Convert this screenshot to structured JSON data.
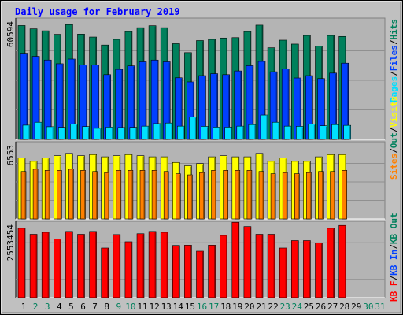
{
  "title": "Daily usage for February 2019",
  "colors": {
    "background": "#c0c0c0",
    "panel": "#b4b4b4",
    "hits": "#00805c",
    "files": "#0040ff",
    "pages": "#00e0ff",
    "visits": "#ff8000",
    "sites": "#ffff00",
    "kbytes": "#ff0000",
    "title_color": "#0000ff",
    "weekend_day": "#00805c",
    "weekday": "#000000"
  },
  "chart_data": [
    {
      "type": "bar",
      "panel": "hits-files-pages",
      "y_tick_label": "60594",
      "legend": [
        {
          "text": "Pages",
          "color": "#00e0ff"
        },
        {
          "text": "Files",
          "color": "#0040ff"
        },
        {
          "text": "Hits",
          "color": "#00805c"
        }
      ],
      "categories": [
        "1",
        "2",
        "3",
        "4",
        "5",
        "6",
        "7",
        "8",
        "9",
        "10",
        "11",
        "12",
        "13",
        "14",
        "15",
        "16",
        "17",
        "18",
        "19",
        "20",
        "21",
        "22",
        "23",
        "24",
        "25",
        "26",
        "27",
        "28",
        "29",
        "30",
        "31"
      ],
      "series": [
        {
          "name": "Hits",
          "values": [
            58400,
            56700,
            55700,
            53900,
            58900,
            54000,
            52500,
            48400,
            51300,
            55300,
            57300,
            58300,
            57300,
            49100,
            44500,
            50700,
            51300,
            52000,
            52200,
            55300,
            58600,
            47000,
            50900,
            48900,
            53300,
            47800,
            53300,
            52800,
            null,
            null,
            null
          ]
        },
        {
          "name": "Files",
          "values": [
            44200,
            42600,
            40700,
            38800,
            41200,
            38100,
            38100,
            33200,
            35900,
            37700,
            39800,
            40700,
            39800,
            31600,
            29500,
            32700,
            33700,
            33200,
            35100,
            37800,
            40000,
            34700,
            36200,
            31500,
            32700,
            31200,
            34000,
            39100,
            null,
            null,
            null
          ]
        },
        {
          "name": "Pages",
          "values": [
            7300,
            8800,
            6500,
            6200,
            7800,
            6600,
            5700,
            6300,
            6100,
            6200,
            6800,
            8100,
            8400,
            6800,
            11500,
            6700,
            6300,
            6300,
            6800,
            7600,
            12500,
            8800,
            6800,
            6700,
            7800,
            7000,
            7600,
            7200,
            null,
            null,
            null
          ]
        }
      ]
    },
    {
      "type": "bar",
      "panel": "visits-sites",
      "y_tick_label": "6553",
      "legend": [
        {
          "text": "Sites",
          "color": "#ff8000"
        },
        {
          "text": "Out",
          "color": "#00805c"
        },
        {
          "text": "Visits",
          "color": "#ffff00"
        }
      ],
      "categories": [
        "1",
        "2",
        "3",
        "4",
        "5",
        "6",
        "7",
        "8",
        "9",
        "10",
        "11",
        "12",
        "13",
        "14",
        "15",
        "16",
        "17",
        "18",
        "19",
        "20",
        "21",
        "22",
        "23",
        "24",
        "25",
        "26",
        "27",
        "28",
        "29",
        "30",
        "31"
      ],
      "series": [
        {
          "name": "Visits",
          "values": [
            5400,
            5100,
            5400,
            5600,
            5800,
            5600,
            5700,
            5500,
            5600,
            5700,
            5600,
            5500,
            5500,
            5000,
            4700,
            4900,
            5500,
            5600,
            5500,
            5500,
            5800,
            5100,
            5400,
            5100,
            5100,
            5500,
            5700,
            5700,
            null,
            null,
            null
          ]
        },
        {
          "name": "Sites",
          "values": [
            4200,
            4400,
            4300,
            4300,
            4400,
            4300,
            4200,
            4100,
            4300,
            4300,
            4300,
            4300,
            4200,
            4000,
            3900,
            4100,
            4300,
            4300,
            4300,
            4300,
            4200,
            4000,
            4100,
            4000,
            4100,
            4200,
            4200,
            4300,
            null,
            null,
            null
          ]
        }
      ]
    },
    {
      "type": "bar",
      "panel": "kbytes",
      "y_tick_label": "2553454",
      "legend": [
        {
          "text": "KB F",
          "color": "#ff0000"
        },
        {
          "text": "KB In",
          "color": "#0040ff"
        },
        {
          "text": "KB Out",
          "color": "#00805c"
        }
      ],
      "categories": [
        "1",
        "2",
        "3",
        "4",
        "5",
        "6",
        "7",
        "8",
        "9",
        "10",
        "11",
        "12",
        "13",
        "14",
        "15",
        "16",
        "17",
        "18",
        "19",
        "20",
        "21",
        "22",
        "23",
        "24",
        "25",
        "26",
        "27",
        "28",
        "29",
        "30",
        "31"
      ],
      "series": [
        {
          "name": "KB F",
          "values": [
            2420000,
            2210000,
            2280000,
            2040000,
            2310000,
            2210000,
            2310000,
            1730000,
            2200000,
            1950000,
            2230000,
            2310000,
            2280000,
            1820000,
            1830000,
            1620000,
            1830000,
            2170000,
            2630000,
            2480000,
            2210000,
            2210000,
            1730000,
            1990000,
            1990000,
            1910000,
            2420000,
            2520000,
            null,
            null,
            null
          ]
        }
      ]
    }
  ]
}
